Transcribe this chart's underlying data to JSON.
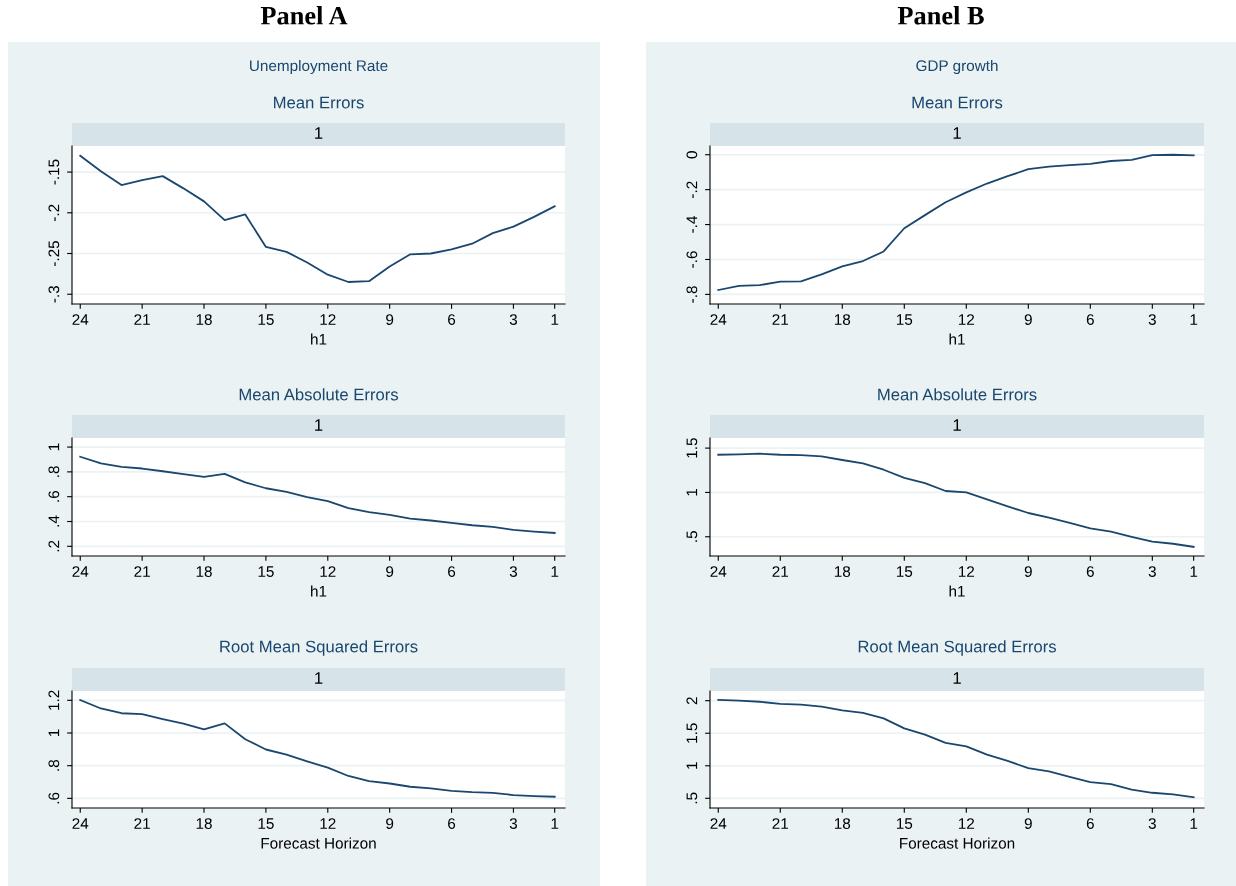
{
  "chart_data": [
    {
      "type": "line",
      "title": "Mean Errors",
      "subtitle": "1",
      "xlabel": "h1",
      "annotations": [
        "Panel A",
        "Unemployment Rate"
      ],
      "x": [
        24,
        23,
        22,
        21,
        20,
        19,
        18,
        17,
        16,
        15,
        14,
        13,
        12,
        11,
        10,
        9,
        8,
        7,
        6,
        5,
        4,
        3,
        2,
        1
      ],
      "series": [
        {
          "color": "#1a476f",
          "values": [
            -0.13,
            -0.149,
            -0.166,
            -0.16,
            -0.155,
            -0.17,
            -0.186,
            -0.209,
            -0.202,
            -0.242,
            -0.248,
            -0.261,
            -0.276,
            -0.285,
            -0.284,
            -0.266,
            -0.251,
            -0.25,
            -0.245,
            -0.238,
            -0.225,
            -0.217,
            -0.205,
            -0.192
          ]
        }
      ],
      "xlim": [
        24.4,
        0.5
      ],
      "xticks": [
        24,
        21,
        18,
        15,
        12,
        9,
        6,
        3,
        1
      ],
      "ylim": [
        -0.312,
        -0.118
      ],
      "yticks": [
        {
          "value": -0.15,
          "label": "-.15"
        },
        {
          "value": -0.2,
          "label": "-.2"
        },
        {
          "value": -0.25,
          "label": "-.25"
        },
        {
          "value": -0.3,
          "label": "-.3"
        }
      ],
      "grid": "y",
      "legend": false
    },
    {
      "type": "line",
      "title": "Mean Errors",
      "subtitle": "1",
      "xlabel": "h1",
      "annotations": [
        "Panel B",
        "GDP growth"
      ],
      "x": [
        24,
        23,
        22,
        21,
        20,
        19,
        18,
        17,
        16,
        15,
        14,
        13,
        12,
        11,
        10,
        9,
        8,
        7,
        6,
        5,
        4,
        3,
        2,
        1
      ],
      "series": [
        {
          "color": "#1a476f",
          "values": [
            -0.775,
            -0.751,
            -0.747,
            -0.727,
            -0.725,
            -0.685,
            -0.639,
            -0.609,
            -0.554,
            -0.421,
            -0.346,
            -0.272,
            -0.216,
            -0.165,
            -0.123,
            -0.083,
            -0.068,
            -0.06,
            -0.052,
            -0.036,
            -0.03,
            -0.002,
            0.0,
            -0.004
          ]
        }
      ],
      "xlim": [
        24.4,
        0.5
      ],
      "xticks": [
        24,
        21,
        18,
        15,
        12,
        9,
        6,
        3,
        1
      ],
      "ylim": [
        -0.855,
        0.05
      ],
      "yticks": [
        0,
        {
          "value": -0.2,
          "label": "-.2"
        },
        {
          "value": -0.4,
          "label": "-.4"
        },
        {
          "value": -0.6,
          "label": "-.6"
        },
        {
          "value": -0.8,
          "label": "-.8"
        }
      ],
      "grid": "y",
      "legend": false
    },
    {
      "type": "line",
      "title": "Mean Absolute Errors",
      "subtitle": "1",
      "xlabel": "h1",
      "x": [
        24,
        23,
        22,
        21,
        20,
        19,
        18,
        17,
        16,
        15,
        14,
        13,
        12,
        11,
        10,
        9,
        8,
        7,
        6,
        5,
        4,
        3,
        2,
        1
      ],
      "series": [
        {
          "color": "#1a476f",
          "values": [
            0.922,
            0.868,
            0.841,
            0.827,
            0.805,
            0.781,
            0.759,
            0.784,
            0.716,
            0.668,
            0.638,
            0.597,
            0.565,
            0.508,
            0.476,
            0.454,
            0.424,
            0.408,
            0.389,
            0.37,
            0.357,
            0.332,
            0.319,
            0.308
          ]
        }
      ],
      "xlim": [
        24.4,
        0.5
      ],
      "xticks": [
        24,
        21,
        18,
        15,
        12,
        9,
        6,
        3,
        1
      ],
      "ylim": [
        0.122,
        1.073
      ],
      "yticks": [
        {
          "value": 0.2,
          "label": ".2"
        },
        {
          "value": 0.4,
          "label": ".4"
        },
        {
          "value": 0.6,
          "label": ".6"
        },
        {
          "value": 0.8,
          "label": ".8"
        },
        1
      ],
      "grid": "y",
      "legend": false
    },
    {
      "type": "line",
      "title": "Mean Absolute Errors",
      "subtitle": "1",
      "xlabel": "h1",
      "x": [
        24,
        23,
        22,
        21,
        20,
        19,
        18,
        17,
        16,
        15,
        14,
        13,
        12,
        11,
        10,
        9,
        8,
        7,
        6,
        5,
        4,
        3,
        2,
        1
      ],
      "series": [
        {
          "color": "#1a476f",
          "values": [
            1.425,
            1.429,
            1.437,
            1.425,
            1.421,
            1.406,
            1.366,
            1.327,
            1.256,
            1.165,
            1.106,
            1.016,
            1.0,
            0.921,
            0.843,
            0.768,
            0.717,
            0.657,
            0.594,
            0.559,
            0.5,
            0.445,
            0.421,
            0.386
          ]
        }
      ],
      "xlim": [
        24.4,
        0.5
      ],
      "xticks": [
        24,
        21,
        18,
        15,
        12,
        9,
        6,
        3,
        1
      ],
      "ylim": [
        0.283,
        1.614
      ],
      "yticks": [
        {
          "value": 0.5,
          "label": ".5"
        },
        1,
        1.5
      ],
      "grid": "y",
      "legend": false
    },
    {
      "type": "line",
      "title": "Root Mean Squared Errors",
      "subtitle": "1",
      "xlabel": "Forecast Horizon",
      "x": [
        24,
        23,
        22,
        21,
        20,
        19,
        18,
        17,
        16,
        15,
        14,
        13,
        12,
        11,
        10,
        9,
        8,
        7,
        6,
        5,
        4,
        3,
        2,
        1
      ],
      "series": [
        {
          "color": "#1a476f",
          "values": [
            1.202,
            1.15,
            1.121,
            1.115,
            1.085,
            1.057,
            1.022,
            1.059,
            0.962,
            0.899,
            0.867,
            0.826,
            0.788,
            0.737,
            0.705,
            0.691,
            0.671,
            0.661,
            0.646,
            0.638,
            0.634,
            0.62,
            0.614,
            0.61
          ]
        }
      ],
      "xlim": [
        24.4,
        0.5
      ],
      "xticks": [
        24,
        21,
        18,
        15,
        12,
        9,
        6,
        3,
        1
      ],
      "ylim": [
        0.541,
        1.257
      ],
      "yticks": [
        {
          "value": 0.6,
          "label": ".6"
        },
        {
          "value": 0.8,
          "label": ".8"
        },
        1,
        1.2
      ],
      "grid": "y",
      "legend": false
    },
    {
      "type": "line",
      "title": "Root Mean Squared Errors",
      "subtitle": "1",
      "xlabel": "Forecast Horizon",
      "x": [
        24,
        23,
        22,
        21,
        20,
        19,
        18,
        17,
        16,
        15,
        14,
        13,
        12,
        11,
        10,
        9,
        8,
        7,
        6,
        5,
        4,
        3,
        2,
        1
      ],
      "series": [
        {
          "color": "#1a476f",
          "values": [
            2.011,
            2.0,
            1.984,
            1.952,
            1.941,
            1.91,
            1.851,
            1.814,
            1.729,
            1.574,
            1.479,
            1.351,
            1.298,
            1.17,
            1.074,
            0.963,
            0.915,
            0.83,
            0.75,
            0.718,
            0.633,
            0.585,
            0.559,
            0.516
          ]
        }
      ],
      "xlim": [
        24.4,
        0.5
      ],
      "xticks": [
        24,
        21,
        18,
        15,
        12,
        9,
        6,
        3,
        1
      ],
      "ylim": [
        0.351,
        2.149
      ],
      "yticks": [
        {
          "value": 0.5,
          "label": ".5"
        },
        1,
        1.5,
        2
      ],
      "grid": "y",
      "legend": false
    }
  ]
}
